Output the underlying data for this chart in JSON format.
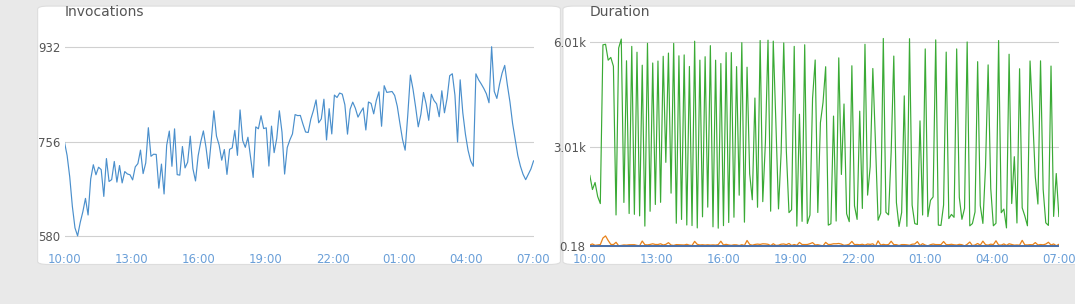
{
  "left_title": "Invocations",
  "right_title": "Duration",
  "x_ticks": [
    "10:00",
    "13:00",
    "16:00",
    "19:00",
    "22:00",
    "01:00",
    "04:00",
    "07:00"
  ],
  "left_ylim": [
    555,
    975
  ],
  "left_yticks": [
    580,
    756,
    932
  ],
  "left_ytick_labels": [
    "580",
    "756",
    "932"
  ],
  "right_ytick_labels": [
    "0.18",
    "3.01k",
    "6.01k"
  ],
  "line_color_left": "#4a8fcc",
  "line_color_green": "#3aaa35",
  "line_color_orange": "#e8821a",
  "line_color_blue_flat": "#4a6fa8",
  "outer_background": "#e8e8e8",
  "panel_background": "#ffffff",
  "grid_color": "#d0d0d0",
  "text_color": "#555555",
  "tick_label_color": "#6a9fd8",
  "title_fontsize": 10,
  "tick_fontsize": 8.5,
  "n_points": 180,
  "seed": 99
}
